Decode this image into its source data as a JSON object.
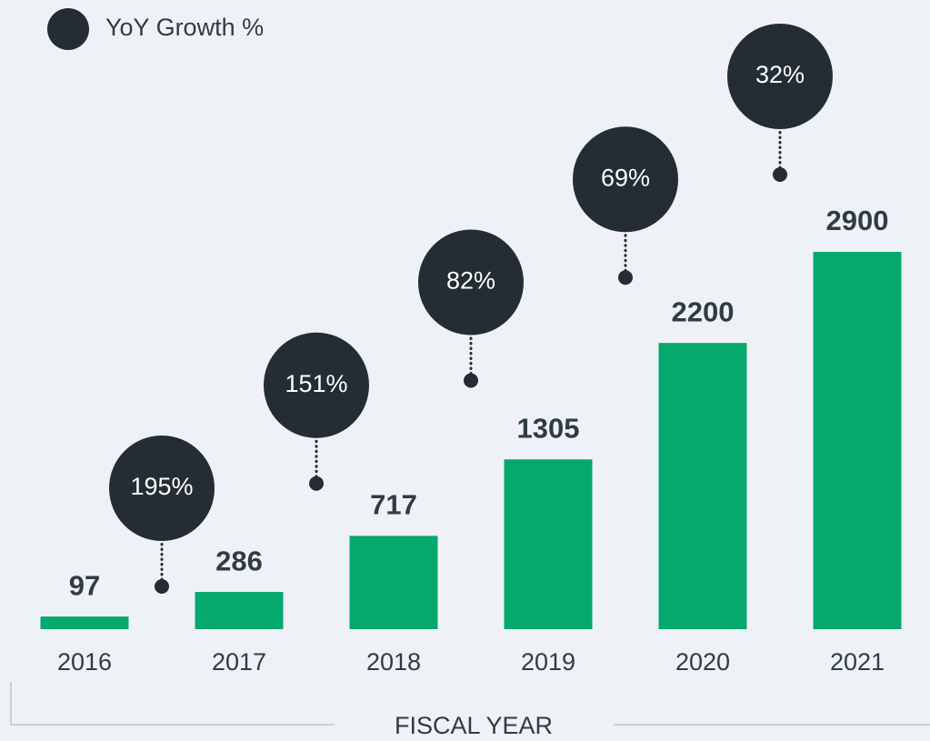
{
  "chart_data": {
    "type": "bar",
    "categories": [
      "2016",
      "2017",
      "2018",
      "2019",
      "2020",
      "2021"
    ],
    "values": [
      97,
      286,
      717,
      1305,
      2200,
      2900
    ],
    "color": "#05a86d",
    "x_label": "FISCAL YEAR",
    "growth": {
      "name": "YoY Growth %",
      "color": "#232d33",
      "values": [
        195,
        151,
        82,
        69,
        32
      ],
      "value_labels": [
        "195%",
        "151%",
        "82%",
        "69%",
        "32%"
      ]
    }
  }
}
